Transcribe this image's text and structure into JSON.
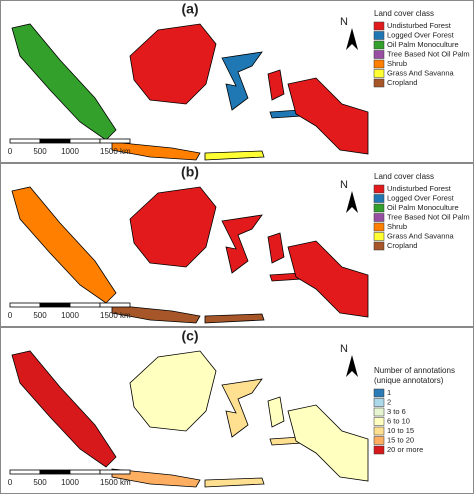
{
  "panels": [
    {
      "label": "(a)",
      "north": "N",
      "scale": [
        "0",
        "500",
        "1000",
        "1500 km"
      ],
      "legend": {
        "title": [
          "Land cover class"
        ],
        "items": [
          {
            "label": "Undisturbed Forest",
            "color": "#e31a1c"
          },
          {
            "label": "Logged Over Forest",
            "color": "#1f78b4"
          },
          {
            "label": "Oil Palm Monoculture",
            "color": "#33a02c"
          },
          {
            "label": "Tree Based Not Oil Palm",
            "color": "#984ea3"
          },
          {
            "label": "Shrub",
            "color": "#ff7f00"
          },
          {
            "label": "Grass And Savanna",
            "color": "#ffff33"
          },
          {
            "label": "Cropland",
            "color": "#a65628"
          }
        ]
      }
    },
    {
      "label": "(b)",
      "north": "N",
      "scale": [
        "0",
        "500",
        "1000",
        "1500 km"
      ],
      "legend": {
        "title": [
          "Land cover class"
        ],
        "items": [
          {
            "label": "Undisturbed Forest",
            "color": "#e31a1c"
          },
          {
            "label": "Logged Over Forest",
            "color": "#1f78b4"
          },
          {
            "label": "Oil Palm Monoculture",
            "color": "#33a02c"
          },
          {
            "label": "Tree Based Not Oil Palm",
            "color": "#984ea3"
          },
          {
            "label": "Shrub",
            "color": "#ff7f00"
          },
          {
            "label": "Grass And Savanna",
            "color": "#ffff33"
          },
          {
            "label": "Cropland",
            "color": "#a65628"
          }
        ]
      }
    },
    {
      "label": "(c)",
      "north": "N",
      "scale": [
        "0",
        "500",
        "1000",
        "1500 km"
      ],
      "legend": {
        "title": [
          "Number of annotations",
          "(unique annotators)"
        ],
        "items": [
          {
            "label": "1",
            "color": "#2c7bb6"
          },
          {
            "label": "2",
            "color": "#abd9e9"
          },
          {
            "label": "3 to 6",
            "color": "#e6f5d0"
          },
          {
            "label": "6 to 10",
            "color": "#ffffbf"
          },
          {
            "label": "10 to 15",
            "color": "#fee090"
          },
          {
            "label": "15 to 20",
            "color": "#fdae61"
          },
          {
            "label": "20 or more",
            "color": "#d7191c"
          }
        ]
      }
    }
  ]
}
